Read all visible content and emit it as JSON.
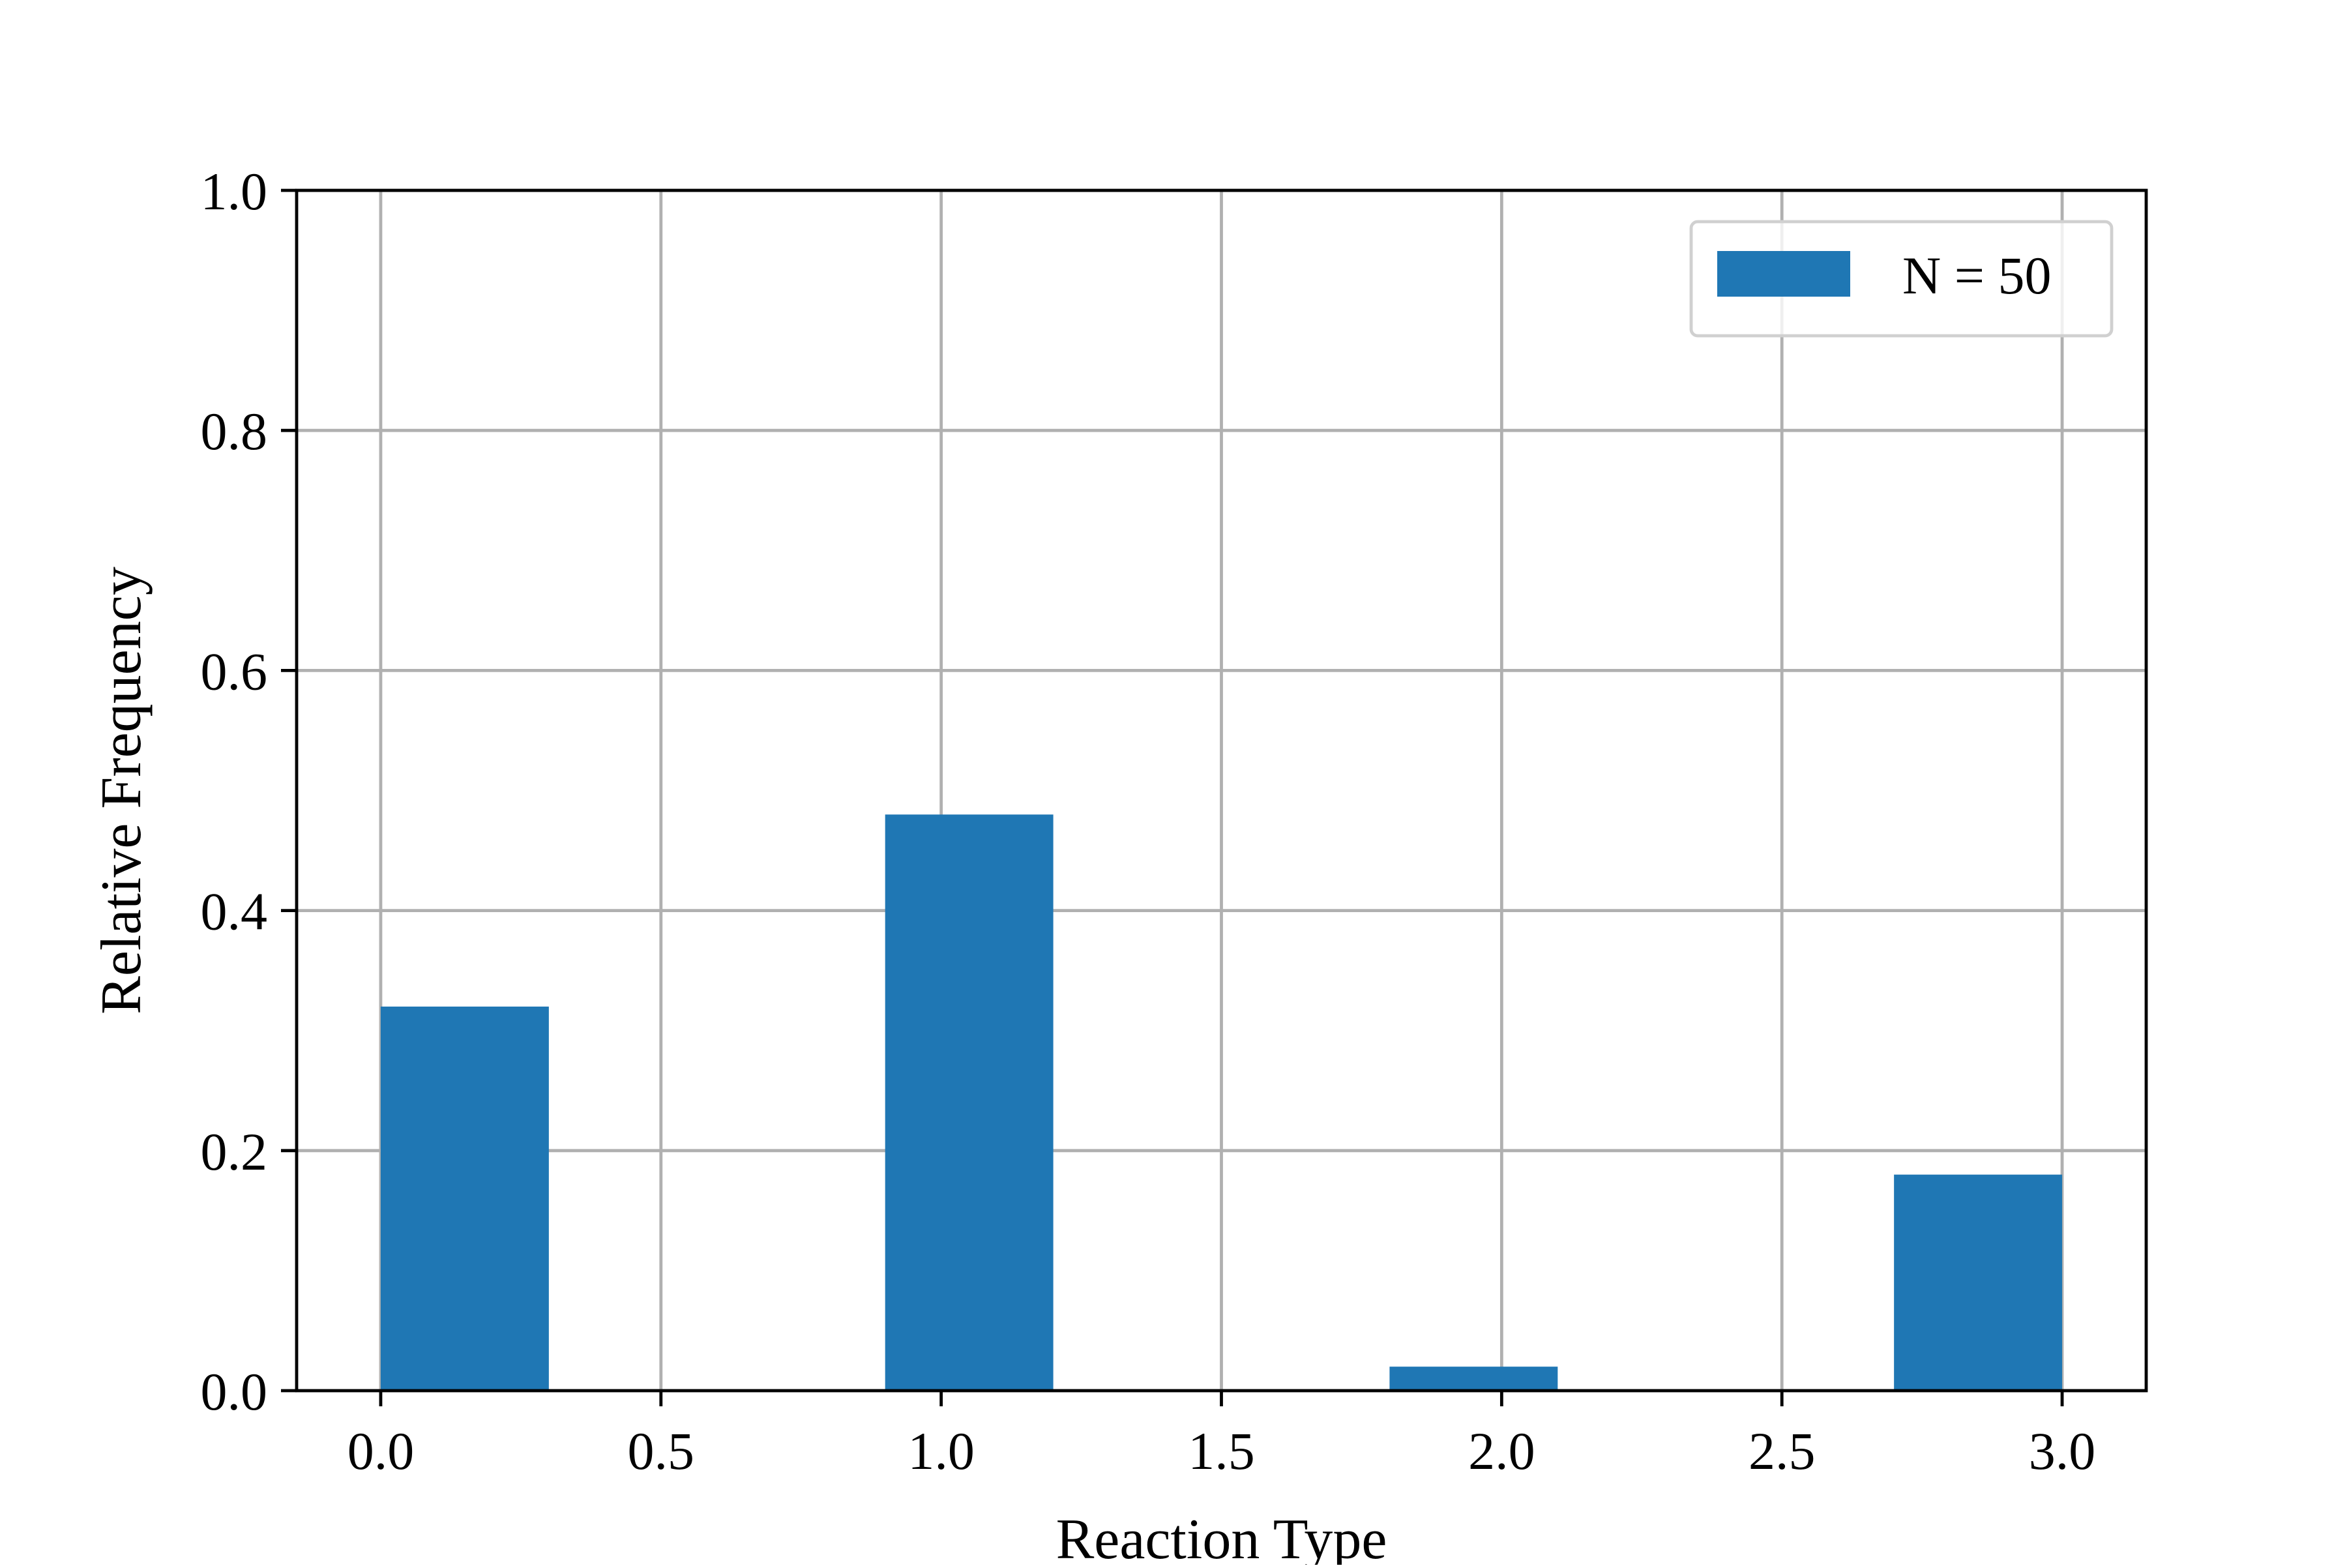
{
  "chart_data": {
    "type": "bar",
    "title": "",
    "xlabel": "Reaction Type",
    "ylabel": "Relative Frequency",
    "xlim": [
      -0.15,
      3.15
    ],
    "ylim": [
      0.0,
      1.0
    ],
    "xticks": [
      "0.0",
      "0.5",
      "1.0",
      "1.5",
      "2.0",
      "2.5",
      "3.0"
    ],
    "xtick_values": [
      0.0,
      0.5,
      1.0,
      1.5,
      2.0,
      2.5,
      3.0
    ],
    "yticks": [
      "0.0",
      "0.2",
      "0.4",
      "0.6",
      "0.8",
      "1.0"
    ],
    "ytick_values": [
      0.0,
      0.2,
      0.4,
      0.6,
      0.8,
      1.0
    ],
    "grid": true,
    "legend_position": "top-right",
    "series": [
      {
        "name": "N = 50",
        "color": "#1f77b4",
        "bars": [
          {
            "x_start": 0.0,
            "x_end": 0.3,
            "value": 0.32
          },
          {
            "x_start": 0.9,
            "x_end": 1.2,
            "value": 0.48
          },
          {
            "x_start": 1.8,
            "x_end": 2.1,
            "value": 0.02
          },
          {
            "x_start": 2.7,
            "x_end": 3.0,
            "value": 0.18
          }
        ]
      }
    ]
  }
}
